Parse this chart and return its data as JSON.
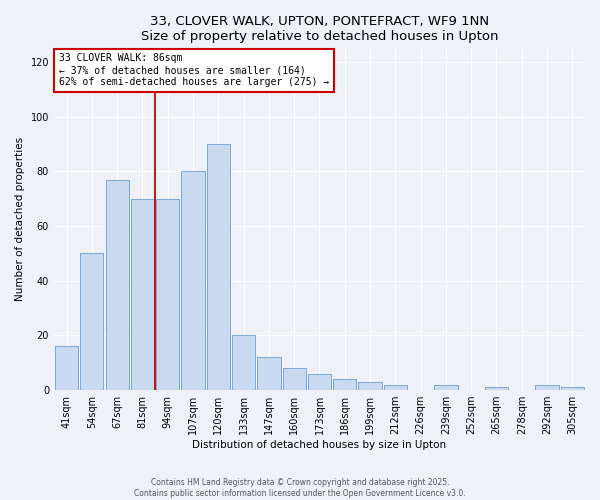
{
  "title": "33, CLOVER WALK, UPTON, PONTEFRACT, WF9 1NN",
  "subtitle": "Size of property relative to detached houses in Upton",
  "xlabel": "Distribution of detached houses by size in Upton",
  "ylabel": "Number of detached properties",
  "bar_labels": [
    "41sqm",
    "54sqm",
    "67sqm",
    "81sqm",
    "94sqm",
    "107sqm",
    "120sqm",
    "133sqm",
    "147sqm",
    "160sqm",
    "173sqm",
    "186sqm",
    "199sqm",
    "212sqm",
    "226sqm",
    "239sqm",
    "252sqm",
    "265sqm",
    "278sqm",
    "292sqm",
    "305sqm"
  ],
  "bar_values": [
    16,
    50,
    77,
    70,
    70,
    80,
    90,
    20,
    12,
    8,
    6,
    4,
    3,
    2,
    0,
    2,
    0,
    1,
    0,
    2,
    1
  ],
  "bar_color": "#c9d9f0",
  "bar_edge_color": "#7aa8d8",
  "vline_x": 3.5,
  "vline_color": "#cc0000",
  "annotation_title": "33 CLOVER WALK: 86sqm",
  "annotation_line1": "← 37% of detached houses are smaller (164)",
  "annotation_line2": "62% of semi-detached houses are larger (275) →",
  "annotation_box_color": "#cc0000",
  "ylim": [
    0,
    125
  ],
  "yticks": [
    0,
    20,
    40,
    60,
    80,
    100,
    120
  ],
  "footer1": "Contains HM Land Registry data © Crown copyright and database right 2025.",
  "footer2": "Contains public sector information licensed under the Open Government Licence v3.0.",
  "bg_color": "#eef2f8",
  "plot_bg_color": "#eef2f8",
  "grid_color": "#ffffff",
  "title_fontsize": 9.5,
  "subtitle_fontsize": 8.5,
  "label_fontsize": 7.5,
  "tick_fontsize": 7,
  "annotation_fontsize": 7
}
